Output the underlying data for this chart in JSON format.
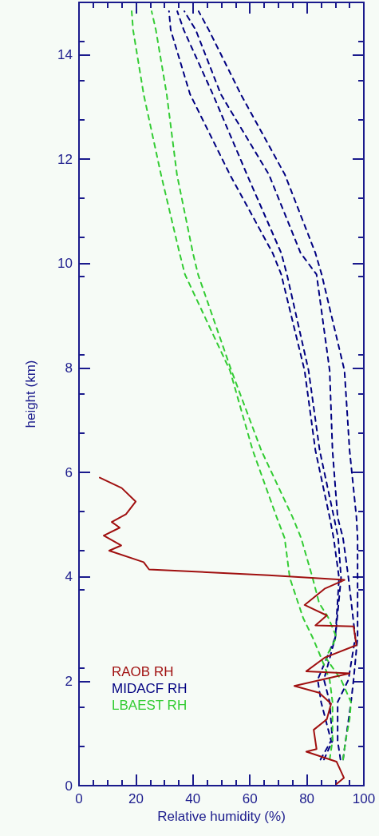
{
  "chart_data": {
    "type": "line",
    "xlabel": "Relative humidity (%)",
    "ylabel": "height (km)",
    "xlim": [
      0,
      100
    ],
    "xticks": [
      0,
      20,
      40,
      60,
      80,
      100
    ],
    "ylim": [
      0,
      15
    ],
    "yticks": [
      0,
      2,
      4,
      6,
      8,
      10,
      12,
      14
    ],
    "grid": false,
    "legend": "bottom left",
    "marker": "none",
    "series": [
      {
        "name": "RAOB RH",
        "color": "#a01010",
        "line_style": "solid",
        "x": [
          90.4,
          93,
          90.4,
          79.8,
          83.4,
          82.4,
          87,
          88.5,
          84.3,
          75.6,
          95,
          79.8,
          86.2,
          97.4,
          96.4,
          83,
          87,
          79.2,
          86.2,
          93.2,
          66.6,
          24.6,
          22.7,
          10.6,
          14.8,
          8.7,
          14.3,
          11.5,
          16.5,
          19.9,
          15,
          7.3
        ],
        "values": [
          0.03,
          0.15,
          0.46,
          0.65,
          0.7,
          1.07,
          1.27,
          1.57,
          1.78,
          1.91,
          2.15,
          2.19,
          2.45,
          2.69,
          3.05,
          3.07,
          3.26,
          3.46,
          3.77,
          3.94,
          4.03,
          4.14,
          4.28,
          4.5,
          4.6,
          4.79,
          4.94,
          5.05,
          5.2,
          5.44,
          5.7,
          5.9
        ]
      },
      {
        "name": "MIDACF RH",
        "color": "#000080",
        "line_style": "dashed",
        "x": [
          84.8,
          88.5,
          85,
          83.8,
          90,
          91.3,
          89.4,
          88,
          83,
          79.2,
          71,
          68,
          53,
          39,
          32.2,
          31.6
        ],
        "values": [
          0.5,
          0.86,
          1.6,
          2.03,
          2.84,
          3.98,
          4.74,
          5.14,
          6.42,
          7.95,
          9.79,
          10.2,
          11.7,
          13.24,
          14.47,
          14.83
        ]
      },
      {
        "color": "#000080",
        "line_style": "dashed",
        "x": [
          86,
          89,
          88,
          86,
          90,
          92,
          91,
          89.5,
          84.5,
          80.6,
          73,
          71,
          59,
          47,
          36.8,
          34.5
        ],
        "values": [
          0.5,
          0.86,
          1.6,
          2.03,
          2.84,
          3.98,
          4.74,
          5.14,
          6.42,
          7.95,
          9.79,
          10.2,
          11.7,
          13.24,
          14.47,
          14.83
        ]
      },
      {
        "color": "#000080",
        "line_style": "dashed",
        "x": [
          91.8,
          90.8,
          90.8,
          94.6,
          97,
          94.6,
          92.7,
          90.8,
          89,
          88,
          83.4,
          77.8,
          66.7,
          49.8,
          41,
          37
        ],
        "values": [
          0.5,
          0.86,
          1.6,
          2.03,
          2.84,
          3.98,
          4.74,
          5.14,
          6.42,
          7.95,
          9.79,
          10.2,
          11.7,
          13.24,
          14.47,
          14.83
        ]
      },
      {
        "color": "#000080",
        "line_style": "dashed",
        "x": [
          92.7,
          93.6,
          95.5,
          96.4,
          97.8,
          97.8,
          97.8,
          97.4,
          95,
          93.2,
          85.2,
          83,
          72.3,
          56.8,
          45.6,
          42
        ],
        "values": [
          0.5,
          0.86,
          1.6,
          2.03,
          2.84,
          3.98,
          4.74,
          5.14,
          6.42,
          7.95,
          9.79,
          10.2,
          11.7,
          13.24,
          14.47,
          14.83
        ]
      },
      {
        "name": "LBAEST RH",
        "color": "#33cc33",
        "line_style": "dashed",
        "x": [
          88,
          89,
          89,
          89,
          88,
          85,
          82,
          78.7,
          74,
          72.2,
          69.4,
          61,
          53,
          37.2,
          35.3,
          28.8,
          22.7,
          19,
          18.5
        ],
        "values": [
          0.5,
          0.86,
          1.27,
          1.6,
          2.03,
          2.45,
          2.84,
          3.21,
          3.98,
          4.74,
          5.14,
          6.42,
          7.95,
          9.79,
          10.2,
          11.7,
          13.24,
          14.47,
          14.83
        ]
      },
      {
        "color": "#33cc33",
        "line_style": "dashed",
        "x": [
          92.7,
          93.6,
          95,
          95.5,
          92,
          86.6,
          90.4,
          87.6,
          84.3,
          82,
          78,
          75,
          64,
          53.5,
          41.8,
          40,
          34.4,
          30.8,
          27,
          25.5
        ],
        "values": [
          0.5,
          0.86,
          1.27,
          1.6,
          2.03,
          2.45,
          2.84,
          3.21,
          3.5,
          3.98,
          4.74,
          5.14,
          6.42,
          7.95,
          9.79,
          10.2,
          11.7,
          13.24,
          14.47,
          14.83
        ]
      }
    ]
  }
}
